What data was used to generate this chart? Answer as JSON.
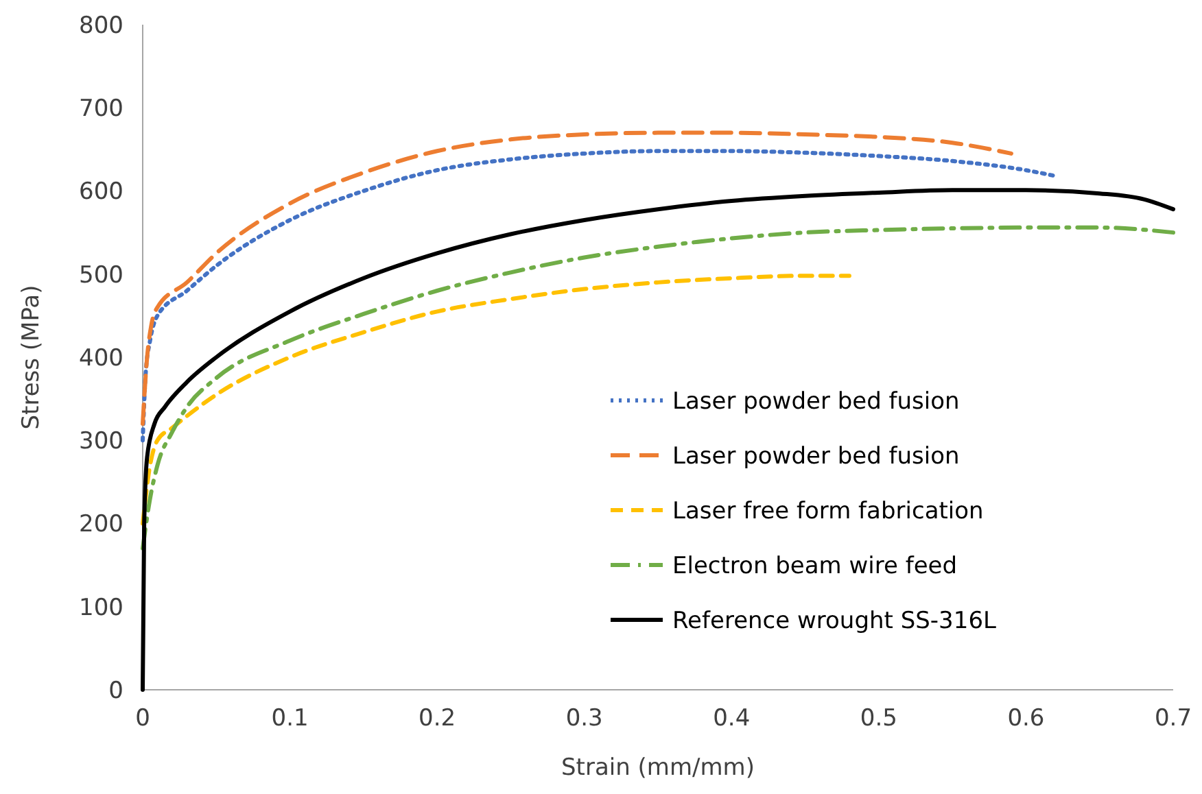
{
  "chart_data": {
    "type": "line",
    "xlabel": "Strain (mm/mm)",
    "ylabel": "Stress (MPa)",
    "xlim": [
      0,
      0.7
    ],
    "xticks": [
      0,
      0.1,
      0.2,
      0.3,
      0.4,
      0.5,
      0.6,
      0.7
    ],
    "ylim": [
      0,
      800
    ],
    "yticks": [
      0,
      100,
      200,
      300,
      400,
      500,
      600,
      700,
      800
    ],
    "grid": false,
    "legend": "bottom right",
    "series": [
      {
        "name": "Laser powder bed fusion",
        "color": "#4472c4",
        "line_style": "dotted",
        "x": [
          0,
          0.002,
          0.005,
          0.01,
          0.03,
          0.05,
          0.1,
          0.15,
          0.2,
          0.25,
          0.3,
          0.35,
          0.4,
          0.45,
          0.5,
          0.55,
          0.6,
          0.62
        ],
        "values": [
          300,
          380,
          420,
          450,
          480,
          510,
          565,
          600,
          625,
          638,
          645,
          648,
          648,
          646,
          642,
          636,
          625,
          618
        ]
      },
      {
        "name": "Laser powder bed fusion",
        "color": "#ed7d31",
        "line_style": "dashed",
        "x": [
          0,
          0.003,
          0.006,
          0.01,
          0.03,
          0.05,
          0.1,
          0.15,
          0.2,
          0.25,
          0.3,
          0.35,
          0.4,
          0.45,
          0.5,
          0.55,
          0.59
        ],
        "values": [
          320,
          400,
          440,
          460,
          490,
          525,
          585,
          622,
          648,
          662,
          668,
          670,
          670,
          668,
          665,
          658,
          645
        ]
      },
      {
        "name": "Laser free form fabrication",
        "color": "#ffc000",
        "line_style": "dashed",
        "x": [
          0,
          0.005,
          0.01,
          0.02,
          0.05,
          0.1,
          0.15,
          0.2,
          0.25,
          0.3,
          0.35,
          0.4,
          0.45,
          0.48
        ],
        "values": [
          200,
          270,
          300,
          315,
          355,
          400,
          430,
          455,
          470,
          482,
          490,
          495,
          498,
          498
        ]
      },
      {
        "name": "Electron beam wire feed",
        "color": "#70ad47",
        "line_style": "dashed",
        "x": [
          0,
          0.005,
          0.01,
          0.02,
          0.03,
          0.05,
          0.1,
          0.15,
          0.2,
          0.25,
          0.3,
          0.35,
          0.4,
          0.45,
          0.5,
          0.55,
          0.6,
          0.65,
          0.7
        ],
        "values": [
          170,
          230,
          270,
          310,
          340,
          375,
          420,
          452,
          480,
          502,
          520,
          533,
          543,
          550,
          553,
          555,
          556,
          556,
          550
        ]
      },
      {
        "name": "Reference wrought SS-316L",
        "color": "#000000",
        "line_style": "solid",
        "x": [
          0,
          0.001,
          0.003,
          0.008,
          0.015,
          0.03,
          0.05,
          0.1,
          0.15,
          0.2,
          0.25,
          0.3,
          0.35,
          0.4,
          0.45,
          0.5,
          0.55,
          0.6,
          0.65,
          0.68,
          0.7
        ],
        "values": [
          0,
          200,
          280,
          320,
          340,
          370,
          400,
          455,
          495,
          525,
          548,
          565,
          578,
          588,
          594,
          598,
          601,
          601,
          597,
          590,
          578
        ]
      }
    ]
  }
}
